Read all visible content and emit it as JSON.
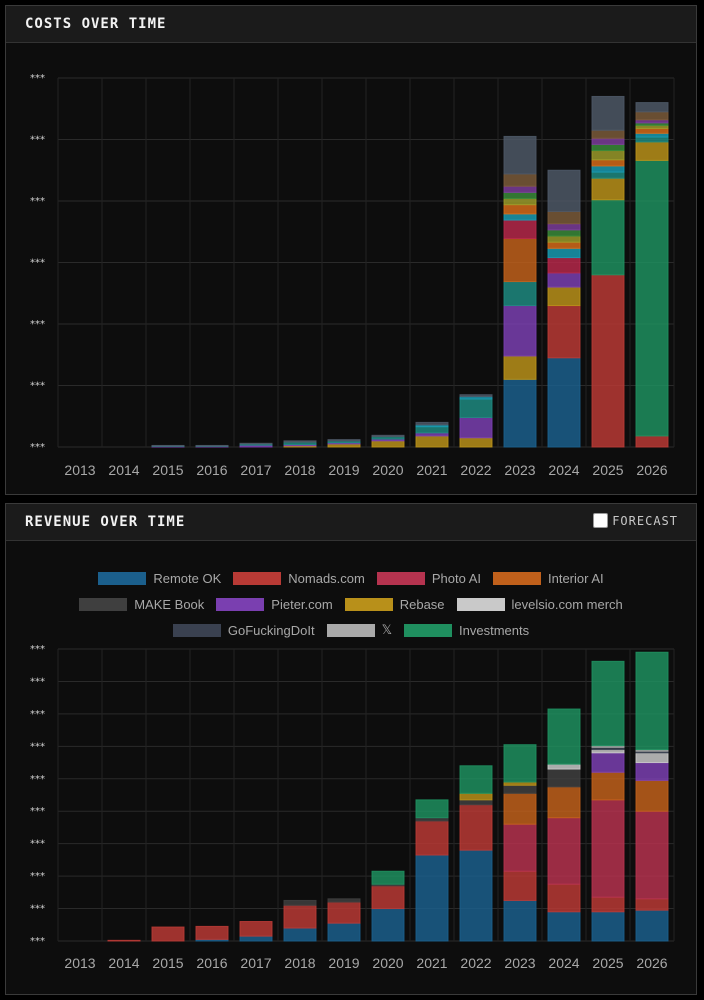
{
  "costs": {
    "title": "COSTS OVER TIME"
  },
  "revenue": {
    "title": "REVENUE OVER TIME",
    "forecast_label": "FORECAST",
    "forecast_checked": false
  },
  "legend_rows": [
    [
      "Remote OK",
      "Nomads.com",
      "Photo AI",
      "Interior AI"
    ],
    [
      "MAKE Book",
      "Pieter.com",
      "Rebase",
      "levelsio.com merch"
    ],
    [
      "GoFuckingDoIt",
      "𝕏",
      "Investments"
    ]
  ],
  "colors": {
    "Remote OK": "#1b5f8c",
    "Nomads.com": "#b83a35",
    "Photo AI": "#b5334f",
    "Interior AI": "#c0601b",
    "MAKE Book": "#3f3f3f",
    "Pieter.com": "#7a3fb0",
    "Rebase": "#b8901a",
    "levelsio.com merch": "#c9c9c9",
    "GoFuckingDoIt": "#3a4150",
    "𝕏": "#a9a9a9",
    "Investments": "#1f8f5f",
    "Teal": "#1f8a80",
    "Purple2": "#7b3d9a",
    "Crimson": "#b5284a",
    "Olive": "#9a9a2a",
    "Green2": "#3a8a3a",
    "Orange2": "#d36a1a",
    "Brown": "#7a5a3a",
    "Cyan": "#1a9ab0",
    "Slate": "#4d5866"
  },
  "chart_data": [
    {
      "type": "bar",
      "stacked": true,
      "title": "COSTS OVER TIME",
      "categories": [
        "2013",
        "2014",
        "2015",
        "2016",
        "2017",
        "2018",
        "2019",
        "2020",
        "2021",
        "2022",
        "2023",
        "2024",
        "2025",
        "2026"
      ],
      "y_tick_labels": [
        "***",
        "***",
        "***",
        "***",
        "***",
        "***",
        "***"
      ],
      "ylim": [
        0,
        60
      ],
      "grid": true,
      "series": [
        {
          "color_key": "Remote OK",
          "values": [
            0,
            0,
            0,
            0,
            0,
            0,
            0,
            0,
            0,
            0,
            11,
            14.5,
            0,
            0
          ]
        },
        {
          "color_key": "Nomads.com",
          "values": [
            0,
            0,
            0,
            0,
            0,
            0,
            0,
            0,
            0,
            0,
            0,
            8.5,
            28,
            1.8
          ]
        },
        {
          "color_key": "Investments",
          "values": [
            0,
            0,
            0,
            0,
            0,
            0,
            0,
            0,
            0,
            0,
            0,
            0,
            12.2,
            44.8
          ]
        },
        {
          "color_key": "Rebase",
          "values": [
            0,
            0,
            0,
            0,
            0,
            0.2,
            0.5,
            1,
            1.8,
            1.5,
            3.8,
            3,
            3.5,
            3
          ]
        },
        {
          "color_key": "Pieter.com",
          "values": [
            0,
            0,
            0.1,
            0.1,
            0.3,
            0.2,
            0.2,
            0.3,
            0.5,
            3.3,
            8.2,
            2.3,
            0,
            0
          ]
        },
        {
          "color_key": "Teal",
          "values": [
            0,
            0,
            0.1,
            0.1,
            0.2,
            0.4,
            0.3,
            0.4,
            1,
            3,
            3.9,
            0,
            1,
            0.8
          ]
        },
        {
          "color_key": "Interior AI",
          "values": [
            0,
            0,
            0,
            0,
            0,
            0,
            0,
            0,
            0,
            0,
            7,
            0,
            0,
            0
          ]
        },
        {
          "color_key": "Crimson",
          "values": [
            0,
            0,
            0,
            0,
            0,
            0,
            0,
            0,
            0,
            0,
            3,
            2.5,
            0,
            0
          ]
        },
        {
          "color_key": "Cyan",
          "values": [
            0,
            0,
            0,
            0,
            0,
            0,
            0,
            0,
            0.3,
            0.4,
            1,
            1.5,
            1,
            0.6
          ]
        },
        {
          "color_key": "Orange2",
          "values": [
            0,
            0,
            0,
            0,
            0,
            0,
            0,
            0,
            0,
            0,
            1.5,
            1,
            1,
            0.8
          ]
        },
        {
          "color_key": "Olive",
          "values": [
            0,
            0,
            0,
            0,
            0,
            0,
            0,
            0,
            0,
            0,
            1,
            1,
            1.5,
            0.5
          ]
        },
        {
          "color_key": "Green2",
          "values": [
            0,
            0,
            0,
            0,
            0,
            0,
            0,
            0,
            0,
            0,
            1,
            1,
            1,
            0.4
          ]
        },
        {
          "color_key": "Purple2",
          "values": [
            0,
            0,
            0,
            0,
            0,
            0,
            0,
            0,
            0,
            0,
            1,
            1,
            1,
            0.5
          ]
        },
        {
          "color_key": "Brown",
          "values": [
            0,
            0,
            0,
            0,
            0,
            0,
            0,
            0,
            0,
            0,
            2,
            2,
            1.3,
            1.3
          ]
        },
        {
          "color_key": "Slate",
          "values": [
            0,
            0,
            0.05,
            0.05,
            0.1,
            0.2,
            0.2,
            0.2,
            0.4,
            0.3,
            6.1,
            6.7,
            5.5,
            1.5
          ]
        }
      ]
    },
    {
      "type": "bar",
      "stacked": true,
      "title": "REVENUE OVER TIME",
      "categories": [
        "2013",
        "2014",
        "2015",
        "2016",
        "2017",
        "2018",
        "2019",
        "2020",
        "2021",
        "2022",
        "2023",
        "2024",
        "2025",
        "2026"
      ],
      "y_tick_labels": [
        "***",
        "***",
        "***",
        "***",
        "***",
        "***",
        "***",
        "***",
        "***",
        "***"
      ],
      "ylim": [
        0,
        90
      ],
      "grid": true,
      "series": [
        {
          "name": "Remote OK",
          "values": [
            0,
            0,
            0,
            0.5,
            1.5,
            4,
            5.5,
            10,
            26.5,
            28,
            12.5,
            9,
            9,
            9.5
          ]
        },
        {
          "name": "Nomads.com",
          "values": [
            0,
            0.2,
            4.3,
            4,
            4.5,
            7,
            6.5,
            7,
            10.5,
            14,
            9,
            8.5,
            4.5,
            3.5
          ]
        },
        {
          "name": "Photo AI",
          "values": [
            0,
            0,
            0,
            0,
            0,
            0,
            0,
            0,
            0,
            0,
            14.5,
            20.5,
            30,
            27
          ]
        },
        {
          "name": "Interior AI",
          "values": [
            0,
            0,
            0,
            0,
            0,
            0,
            0,
            0,
            0,
            0,
            9.5,
            9.5,
            8.5,
            9.5
          ]
        },
        {
          "name": "MAKE Book",
          "values": [
            0,
            0,
            0,
            0,
            0,
            1.5,
            1,
            0.5,
            1,
            1.5,
            2.5,
            5.5,
            0,
            0
          ]
        },
        {
          "name": "Pieter.com",
          "values": [
            0,
            0,
            0,
            0,
            0,
            0,
            0,
            0,
            0,
            0,
            0,
            0,
            6,
            5.5
          ]
        },
        {
          "name": "Rebase",
          "values": [
            0,
            0,
            0,
            0,
            0,
            0,
            0,
            0,
            0,
            2,
            1,
            0,
            0,
            0
          ]
        },
        {
          "name": "levelsio.com merch",
          "values": [
            0,
            0,
            0,
            0,
            0,
            0,
            0,
            0,
            0,
            0,
            0,
            1.5,
            1,
            3
          ]
        },
        {
          "name": "GoFuckingDoIt",
          "values": [
            0,
            0,
            0,
            0,
            0,
            0,
            0,
            0,
            0,
            0,
            0,
            0,
            0.7,
            0.5
          ]
        },
        {
          "name": "𝕏",
          "values": [
            0,
            0,
            0,
            0,
            0,
            0,
            0,
            0,
            0,
            0,
            0,
            0,
            0.5,
            0.5
          ]
        },
        {
          "name": "Investments",
          "values": [
            0,
            0,
            0,
            0,
            0,
            0,
            0,
            4,
            5.5,
            8.5,
            11.5,
            17,
            26,
            30
          ]
        }
      ]
    }
  ]
}
